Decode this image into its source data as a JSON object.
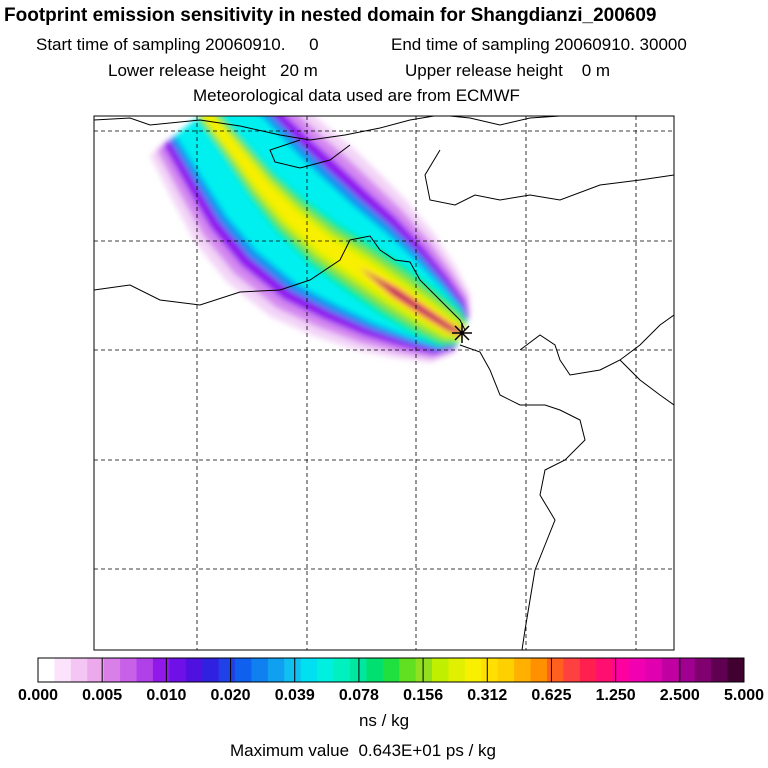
{
  "header": {
    "title": "Footprint emission sensitivity in nested domain for Shangdianzi_200609",
    "start_label": "Start time of sampling 20060910.     0",
    "end_label": "End time of sampling 20060910. 30000",
    "lower_label": "Lower release height   20 m",
    "upper_label": "Upper release height    0 m",
    "met_label": "Meteorological data used are from ECMWF"
  },
  "colorbar": {
    "tick_labels": [
      "0.000",
      "0.005",
      "0.010",
      "0.020",
      "0.039",
      "0.078",
      "0.156",
      "0.312",
      "0.625",
      "1.250",
      "2.500",
      "5.000"
    ],
    "unit": "ns / kg",
    "colors": [
      "#ffffff",
      "#fbe3fb",
      "#f4c6f4",
      "#ecaaec",
      "#d980e8",
      "#c860e8",
      "#b040e8",
      "#9018e8",
      "#7010e8",
      "#5010e0",
      "#3020e0",
      "#2040e8",
      "#1060f0",
      "#1080f0",
      "#10a0f0",
      "#10c0f0",
      "#00e0f0",
      "#00f0e0",
      "#00f0c0",
      "#00e8a0",
      "#00e070",
      "#20e040",
      "#60e020",
      "#90e020",
      "#c0f000",
      "#e0f000",
      "#f8f000",
      "#ffe000",
      "#ffd000",
      "#ffb000",
      "#ff9000",
      "#ff6020",
      "#ff4040",
      "#ff2050",
      "#ff1070",
      "#ff00a0",
      "#f000b0",
      "#e000b0",
      "#c000a0",
      "#a00090",
      "#800070",
      "#600050",
      "#400030"
    ]
  },
  "footer": {
    "max_value": "Maximum value  0.643E+01 ps / kg"
  },
  "map": {
    "receptor": "Shangdianzi",
    "receptor_marker": "star",
    "grid": "dashed",
    "plume_colors": [
      "#f3d4f7",
      "#d488f0",
      "#9010f0",
      "#1090f0",
      "#00f0f0",
      "#00e890",
      "#80e040",
      "#c8f000",
      "#f8f000",
      "#ffb000",
      "#ff4060",
      "#ff1090",
      "#500040"
    ]
  }
}
